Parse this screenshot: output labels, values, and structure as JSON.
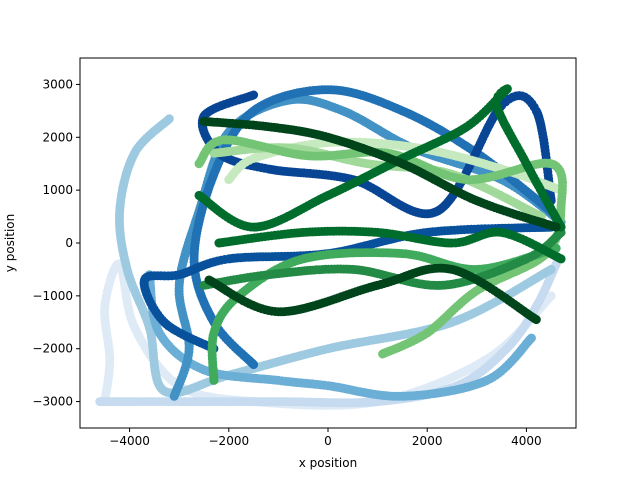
{
  "chart_data": {
    "type": "scatter",
    "title": "",
    "xlabel": "x position",
    "ylabel": "y position",
    "xlim": [
      -5000,
      5000
    ],
    "ylim": [
      -3500,
      3500
    ],
    "xticks": [
      -4000,
      -2000,
      0,
      2000,
      4000
    ],
    "xtick_labels": [
      "−4000",
      "−2000",
      "0",
      "2000",
      "4000"
    ],
    "yticks": [
      -3000,
      -2000,
      -1000,
      0,
      1000,
      2000,
      3000
    ],
    "ytick_labels": [
      "−3000",
      "−2000",
      "−1000",
      "0",
      "1000",
      "2000",
      "3000"
    ],
    "grid": false,
    "legend": "none",
    "series": [
      {
        "color": "#deebf7",
        "points": [
          [
            -4500,
            -3000
          ],
          [
            -4400,
            -2200
          ],
          [
            -4500,
            -1200
          ],
          [
            -4200,
            -400
          ],
          [
            -3900,
            -1600
          ],
          [
            -3000,
            -2700
          ],
          [
            -1500,
            -3000
          ],
          [
            1000,
            -3000
          ],
          [
            3200,
            -2200
          ],
          [
            4500,
            -1000
          ]
        ]
      },
      {
        "color": "#c6dbef",
        "points": [
          [
            -4600,
            -3000
          ],
          [
            -3000,
            -3000
          ],
          [
            -1000,
            -3000
          ],
          [
            1000,
            -3000
          ],
          [
            2600,
            -2700
          ],
          [
            3600,
            -2000
          ],
          [
            4200,
            -1200
          ],
          [
            4600,
            -400
          ]
        ]
      },
      {
        "color": "#9ecae1",
        "points": [
          [
            -3200,
            2350
          ],
          [
            -3900,
            1700
          ],
          [
            -4200,
            600
          ],
          [
            -4050,
            -500
          ],
          [
            -3600,
            -1600
          ],
          [
            -3300,
            -2800
          ],
          [
            -2000,
            -2500
          ],
          [
            0,
            -2000
          ],
          [
            2500,
            -1500
          ],
          [
            4500,
            -500
          ]
        ]
      },
      {
        "color": "#6baed6",
        "points": [
          [
            -3600,
            -600
          ],
          [
            -3400,
            -1700
          ],
          [
            -2500,
            -2400
          ],
          [
            -1000,
            -2600
          ],
          [
            0,
            -2700
          ],
          [
            1500,
            -2900
          ],
          [
            3200,
            -2600
          ],
          [
            4100,
            -1800
          ]
        ]
      },
      {
        "color": "#4292c6",
        "points": [
          [
            -3100,
            -2900
          ],
          [
            -2800,
            -2000
          ],
          [
            -3000,
            -800
          ],
          [
            -2600,
            600
          ],
          [
            -2000,
            2100
          ],
          [
            -800,
            2700
          ],
          [
            300,
            2500
          ],
          [
            1700,
            1800
          ],
          [
            3500,
            1200
          ],
          [
            4700,
            400
          ]
        ]
      },
      {
        "color": "#2171b5",
        "points": [
          [
            -1500,
            -2300
          ],
          [
            -2300,
            -1500
          ],
          [
            -2700,
            -300
          ],
          [
            -2300,
            1300
          ],
          [
            -1500,
            2500
          ],
          [
            0,
            2900
          ],
          [
            1500,
            2500
          ],
          [
            3000,
            1700
          ],
          [
            4500,
            600
          ]
        ]
      },
      {
        "color": "#08519c",
        "points": [
          [
            -2300,
            -2000
          ],
          [
            -3300,
            -1500
          ],
          [
            -3700,
            -700
          ],
          [
            -3000,
            -600
          ],
          [
            -2000,
            -300
          ],
          [
            0,
            -200
          ],
          [
            2000,
            200
          ],
          [
            4500,
            300
          ]
        ]
      },
      {
        "color": "#084594",
        "points": [
          [
            -1500,
            2800
          ],
          [
            -2500,
            2400
          ],
          [
            -2200,
            1700
          ],
          [
            -1200,
            1400
          ],
          [
            500,
            1200
          ],
          [
            2200,
            600
          ],
          [
            3500,
            2600
          ],
          [
            4200,
            2500
          ],
          [
            4500,
            800
          ]
        ]
      },
      {
        "color": "#c7e9c0",
        "points": [
          [
            -2000,
            1200
          ],
          [
            -1500,
            1600
          ],
          [
            0,
            1900
          ],
          [
            1800,
            1800
          ],
          [
            3500,
            1400
          ],
          [
            4700,
            1000
          ]
        ]
      },
      {
        "color": "#a1d99b",
        "points": [
          [
            -2300,
            1700
          ],
          [
            -800,
            1800
          ],
          [
            800,
            1500
          ],
          [
            2500,
            1300
          ],
          [
            4300,
            500
          ]
        ]
      },
      {
        "color": "#74c476",
        "points": [
          [
            -2600,
            1500
          ],
          [
            -2100,
            1950
          ],
          [
            -400,
            1650
          ],
          [
            1200,
            1700
          ],
          [
            2800,
            1200
          ],
          [
            4500,
            1500
          ],
          [
            4700,
            700
          ],
          [
            4400,
            -200
          ],
          [
            3000,
            -900
          ],
          [
            2000,
            -1700
          ],
          [
            1100,
            -2100
          ]
        ]
      },
      {
        "color": "#41ab5d",
        "points": [
          [
            -2300,
            -2600
          ],
          [
            -2300,
            -1700
          ],
          [
            -1800,
            -1000
          ],
          [
            -500,
            -300
          ],
          [
            1500,
            -200
          ],
          [
            3000,
            -500
          ],
          [
            4600,
            -100
          ]
        ]
      },
      {
        "color": "#238b45",
        "points": [
          [
            -2500,
            -800
          ],
          [
            -1200,
            -600
          ],
          [
            500,
            -500
          ],
          [
            2300,
            -800
          ],
          [
            4000,
            -300
          ],
          [
            4700,
            200
          ]
        ]
      },
      {
        "color": "#006d2c",
        "points": [
          [
            -2600,
            900
          ],
          [
            -1500,
            300
          ],
          [
            0,
            900
          ],
          [
            1500,
            1600
          ],
          [
            2800,
            2200
          ],
          [
            3600,
            2900
          ],
          [
            3400,
            2600
          ],
          [
            4000,
            1500
          ],
          [
            4700,
            300
          ]
        ]
      },
      {
        "color": "#00441b",
        "points": [
          [
            -2500,
            2300
          ],
          [
            -1200,
            2200
          ],
          [
            0,
            2000
          ],
          [
            1500,
            1500
          ],
          [
            3000,
            800
          ],
          [
            4600,
            300
          ]
        ]
      },
      {
        "color": "#00441b",
        "points": [
          [
            -2400,
            -700
          ],
          [
            -1000,
            -1300
          ],
          [
            1000,
            -800
          ],
          [
            2500,
            -500
          ],
          [
            4200,
            -1450
          ]
        ]
      },
      {
        "color": "#006d2c",
        "points": [
          [
            -2200,
            0
          ],
          [
            -500,
            200
          ],
          [
            1000,
            200
          ],
          [
            2500,
            0
          ],
          [
            3500,
            200
          ],
          [
            4700,
            -300
          ]
        ]
      }
    ]
  }
}
